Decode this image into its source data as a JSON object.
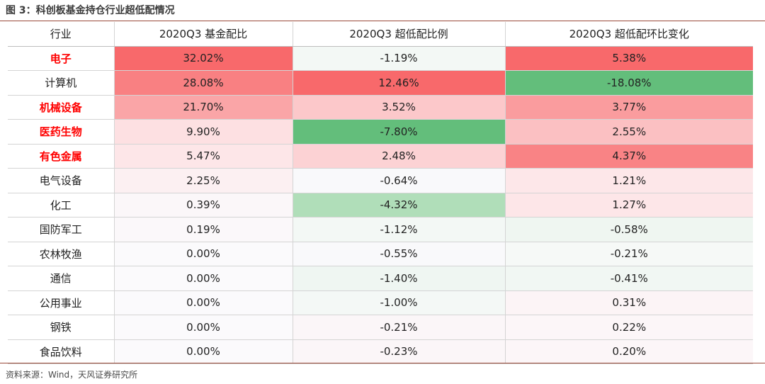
{
  "figure": {
    "title": "图 3：科创板基金持仓行业超低配情况",
    "source": "资料来源：Wind，天风证券研究所"
  },
  "table": {
    "headers": [
      "行业",
      "2020Q3 基金配比",
      "2020Q3 超低配比例",
      "2020Q3 超低配环比变化"
    ],
    "rows": [
      {
        "industry": "电子",
        "highlight": true,
        "ratio": "32.02%",
        "over_under": "-1.19%",
        "qoq_change": "5.38%",
        "colors": [
          "#f8696b",
          "#f3f8f5",
          "#f8696b"
        ]
      },
      {
        "industry": "计算机",
        "highlight": false,
        "ratio": "28.08%",
        "over_under": "12.46%",
        "qoq_change": "-18.08%",
        "colors": [
          "#f98082",
          "#f8696b",
          "#63be7b"
        ]
      },
      {
        "industry": "机械设备",
        "highlight": true,
        "ratio": "21.70%",
        "over_under": "3.52%",
        "qoq_change": "3.77%",
        "colors": [
          "#faa5a7",
          "#fcc8ca",
          "#fa9c9e"
        ]
      },
      {
        "industry": "医药生物",
        "highlight": true,
        "ratio": "9.90%",
        "over_under": "-7.80%",
        "qoq_change": "2.55%",
        "colors": [
          "#fde0e2",
          "#63be7b",
          "#fbc0c2"
        ]
      },
      {
        "industry": "有色金属",
        "highlight": true,
        "ratio": "5.47%",
        "over_under": "2.48%",
        "qoq_change": "4.37%",
        "colors": [
          "#fde6e8",
          "#fcd2d4",
          "#f98385"
        ]
      },
      {
        "industry": "电气设备",
        "highlight": false,
        "ratio": "2.25%",
        "over_under": "-0.64%",
        "qoq_change": "1.21%",
        "colors": [
          "#fcf0f2",
          "#f9f9fb",
          "#fde7e9"
        ]
      },
      {
        "industry": "化工",
        "highlight": false,
        "ratio": "0.39%",
        "over_under": "-4.32%",
        "qoq_change": "1.27%",
        "colors": [
          "#fbf7f9",
          "#b0deb9",
          "#fde6e8"
        ]
      },
      {
        "industry": "国防军工",
        "highlight": false,
        "ratio": "0.19%",
        "over_under": "-1.12%",
        "qoq_change": "-0.58%",
        "colors": [
          "#fbf8fa",
          "#f3f8f5",
          "#eff6f1"
        ]
      },
      {
        "industry": "农林牧渔",
        "highlight": false,
        "ratio": "0.00%",
        "over_under": "-0.55%",
        "qoq_change": "-0.21%",
        "colors": [
          "#fbfafc",
          "#f9f9fb",
          "#f6f9f7"
        ]
      },
      {
        "industry": "通信",
        "highlight": false,
        "ratio": "0.00%",
        "over_under": "-1.40%",
        "qoq_change": "-0.41%",
        "colors": [
          "#fbfafc",
          "#eff6f2",
          "#f1f7f3"
        ]
      },
      {
        "industry": "公用事业",
        "highlight": false,
        "ratio": "0.00%",
        "over_under": "-1.00%",
        "qoq_change": "0.31%",
        "colors": [
          "#fbfafc",
          "#f4f8f6",
          "#fcf4f6"
        ]
      },
      {
        "industry": "钢铁",
        "highlight": false,
        "ratio": "0.00%",
        "over_under": "-0.21%",
        "qoq_change": "0.22%",
        "colors": [
          "#fbfafc",
          "#fbf6f8",
          "#fcf6f8"
        ]
      },
      {
        "industry": "食品饮料",
        "highlight": false,
        "ratio": "0.00%",
        "over_under": "-0.23%",
        "qoq_change": "0.20%",
        "colors": [
          "#fbfafc",
          "#fbf6f8",
          "#fcf6f8"
        ]
      }
    ]
  }
}
